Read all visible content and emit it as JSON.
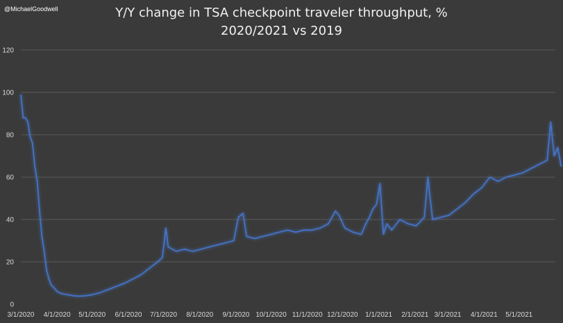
{
  "watermark": "@MichaelGoodwell",
  "chart_data": {
    "type": "line",
    "title": "Y/Y change in TSA checkpoint traveler throughput, %",
    "subtitle": "2020/2021 vs 2019",
    "xlabel": "",
    "ylabel": "",
    "ylim": [
      0,
      120
    ],
    "yticks": [
      0,
      20,
      40,
      60,
      80,
      100,
      120
    ],
    "xlim": [
      "2020-03-01",
      "2021-06-01"
    ],
    "x_tick_labels": [
      "3/1/2020",
      "4/1/2020",
      "5/1/2020",
      "6/1/2020",
      "7/1/2020",
      "8/1/2020",
      "9/1/2020",
      "10/1/2020",
      "11/1/2020",
      "12/1/2020",
      "1/1/2021",
      "2/1/2021",
      "3/1/2021",
      "4/1/2021",
      "5/1/2021"
    ],
    "grid": true,
    "legend": "none",
    "line_color": "#4472c4",
    "series": [
      {
        "points": [
          [
            "2020-03-01",
            99
          ],
          [
            "2020-03-03",
            88
          ],
          [
            "2020-03-05",
            88
          ],
          [
            "2020-03-07",
            86
          ],
          [
            "2020-03-09",
            79
          ],
          [
            "2020-03-11",
            76
          ],
          [
            "2020-03-13",
            65
          ],
          [
            "2020-03-15",
            58
          ],
          [
            "2020-03-17",
            44
          ],
          [
            "2020-03-19",
            32
          ],
          [
            "2020-03-21",
            25
          ],
          [
            "2020-03-23",
            16
          ],
          [
            "2020-03-25",
            12
          ],
          [
            "2020-03-27",
            9
          ],
          [
            "2020-03-29",
            8
          ],
          [
            "2020-04-01",
            6
          ],
          [
            "2020-04-05",
            5
          ],
          [
            "2020-04-10",
            4.5
          ],
          [
            "2020-04-15",
            4
          ],
          [
            "2020-04-20",
            3.8
          ],
          [
            "2020-04-25",
            4
          ],
          [
            "2020-05-01",
            4.5
          ],
          [
            "2020-05-08",
            5.5
          ],
          [
            "2020-05-15",
            7
          ],
          [
            "2020-05-22",
            8.5
          ],
          [
            "2020-05-29",
            10
          ],
          [
            "2020-06-05",
            12
          ],
          [
            "2020-06-12",
            14
          ],
          [
            "2020-06-19",
            17
          ],
          [
            "2020-06-26",
            20
          ],
          [
            "2020-06-30",
            22
          ],
          [
            "2020-07-03",
            36
          ],
          [
            "2020-07-05",
            27
          ],
          [
            "2020-07-12",
            25
          ],
          [
            "2020-07-19",
            26
          ],
          [
            "2020-07-26",
            25
          ],
          [
            "2020-08-02",
            26
          ],
          [
            "2020-08-09",
            27
          ],
          [
            "2020-08-16",
            28
          ],
          [
            "2020-08-23",
            29
          ],
          [
            "2020-08-30",
            30
          ],
          [
            "2020-09-03",
            41
          ],
          [
            "2020-09-07",
            43
          ],
          [
            "2020-09-10",
            32
          ],
          [
            "2020-09-17",
            31
          ],
          [
            "2020-09-24",
            32
          ],
          [
            "2020-10-01",
            33
          ],
          [
            "2020-10-08",
            34
          ],
          [
            "2020-10-15",
            35
          ],
          [
            "2020-10-22",
            34
          ],
          [
            "2020-10-29",
            35
          ],
          [
            "2020-11-05",
            35
          ],
          [
            "2020-11-12",
            36
          ],
          [
            "2020-11-19",
            38
          ],
          [
            "2020-11-25",
            44
          ],
          [
            "2020-11-28",
            42
          ],
          [
            "2020-12-03",
            36
          ],
          [
            "2020-12-10",
            34
          ],
          [
            "2020-12-17",
            33
          ],
          [
            "2020-12-21",
            38
          ],
          [
            "2020-12-24",
            41
          ],
          [
            "2020-12-27",
            45
          ],
          [
            "2020-12-30",
            47
          ],
          [
            "2021-01-02",
            57
          ],
          [
            "2021-01-05",
            33
          ],
          [
            "2021-01-08",
            38
          ],
          [
            "2021-01-12",
            35
          ],
          [
            "2021-01-19",
            40
          ],
          [
            "2021-01-26",
            38
          ],
          [
            "2021-02-02",
            37
          ],
          [
            "2021-02-09",
            41
          ],
          [
            "2021-02-12",
            60
          ],
          [
            "2021-02-16",
            40
          ],
          [
            "2021-02-23",
            41
          ],
          [
            "2021-03-02",
            42
          ],
          [
            "2021-03-09",
            45
          ],
          [
            "2021-03-16",
            48
          ],
          [
            "2021-03-23",
            52
          ],
          [
            "2021-03-30",
            55
          ],
          [
            "2021-04-06",
            60
          ],
          [
            "2021-04-13",
            58
          ],
          [
            "2021-04-20",
            60
          ],
          [
            "2021-04-27",
            61
          ],
          [
            "2021-05-04",
            62
          ],
          [
            "2021-05-11",
            64
          ],
          [
            "2021-05-18",
            66
          ],
          [
            "2021-05-25",
            68
          ],
          [
            "2021-05-28",
            86
          ],
          [
            "2021-05-31",
            70
          ],
          [
            "2021-06-03",
            74
          ],
          [
            "2021-06-06",
            65
          ]
        ]
      }
    ]
  }
}
